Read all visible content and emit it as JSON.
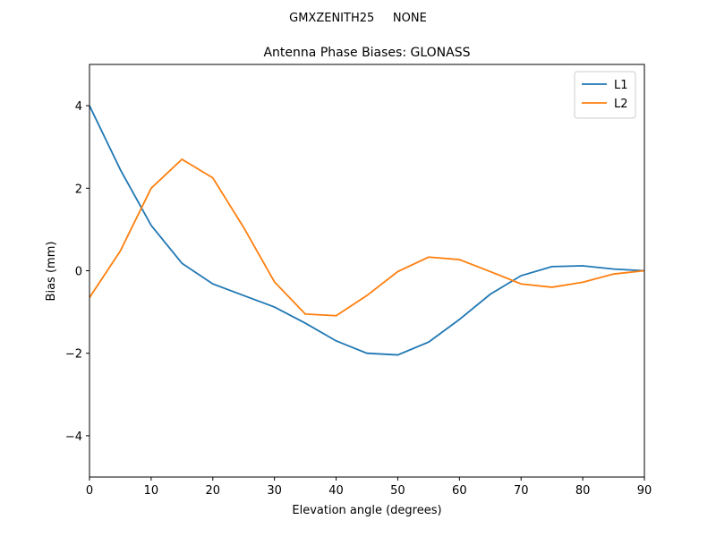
{
  "chart_data": {
    "type": "line",
    "suptitle": "GMXZENITH25     NONE",
    "title": "Antenna Phase Biases: GLONASS",
    "xlabel": "Elevation angle (degrees)",
    "ylabel": "Bias (mm)",
    "x": [
      0,
      5,
      10,
      15,
      20,
      25,
      30,
      35,
      40,
      45,
      50,
      55,
      60,
      65,
      70,
      75,
      80,
      85,
      90
    ],
    "series": [
      {
        "name": "L1",
        "color": "#1f77b4",
        "values": [
          4.0,
          2.45,
          1.1,
          0.18,
          -0.32,
          -0.6,
          -0.88,
          -1.27,
          -1.7,
          -2.0,
          -2.04,
          -1.73,
          -1.18,
          -0.57,
          -0.12,
          0.1,
          0.12,
          0.04,
          0.0
        ]
      },
      {
        "name": "L2",
        "color": "#ff7f0e",
        "values": [
          -0.65,
          0.48,
          2.0,
          2.7,
          2.25,
          1.05,
          -0.27,
          -1.05,
          -1.09,
          -0.6,
          -0.02,
          0.33,
          0.27,
          -0.02,
          -0.32,
          -0.4,
          -0.28,
          -0.08,
          0.0
        ]
      }
    ],
    "xlim": [
      0,
      90
    ],
    "xticks": [
      0,
      10,
      20,
      30,
      40,
      50,
      60,
      70,
      80,
      90
    ],
    "ylim": [
      -5,
      5
    ],
    "yticks": [
      {
        "value": -4,
        "label": "−4"
      },
      {
        "value": -2,
        "label": "−2"
      },
      0,
      2,
      4
    ],
    "legend": "upper right"
  }
}
